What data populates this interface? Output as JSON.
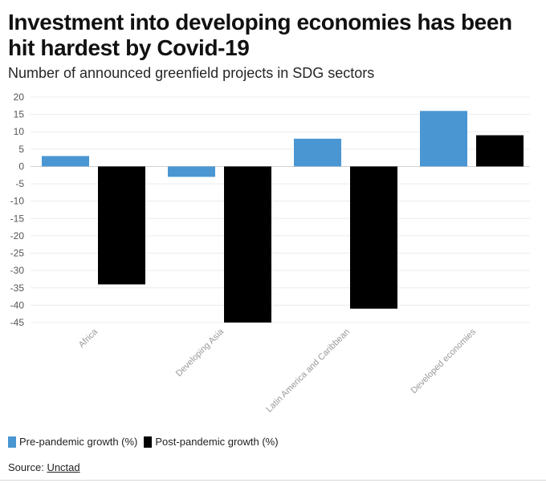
{
  "title": "Investment into developing economies has been hit hardest by Covid-19",
  "subtitle": "Number of announced greenfield projects in SDG sectors",
  "legend": {
    "pre": "Pre-pandemic growth (%)",
    "post": "Post-pandemic growth (%)"
  },
  "source": {
    "label": "Source:",
    "link": "Unctad"
  },
  "colors": {
    "pre": "#4a96d2",
    "post": "#000000"
  },
  "chart_data": {
    "type": "bar",
    "title": "Investment into developing economies has been hit hardest by Covid-19",
    "subtitle": "Number of announced greenfield projects in SDG sectors",
    "categories": [
      "Africa",
      "Developing Asia",
      "Latin America and Caribbean",
      "Developed economies"
    ],
    "series": [
      {
        "name": "Pre-pandemic growth (%)",
        "values": [
          3,
          -3,
          8,
          16
        ]
      },
      {
        "name": "Post-pandemic growth (%)",
        "values": [
          -34,
          -45,
          -41,
          9
        ]
      }
    ],
    "ylim": [
      -45,
      20
    ],
    "yticks": [
      20,
      15,
      10,
      5,
      0,
      -5,
      -10,
      -15,
      -20,
      -25,
      -30,
      -35,
      -40,
      -45
    ],
    "grid": true,
    "legend_position": "bottom-left"
  }
}
